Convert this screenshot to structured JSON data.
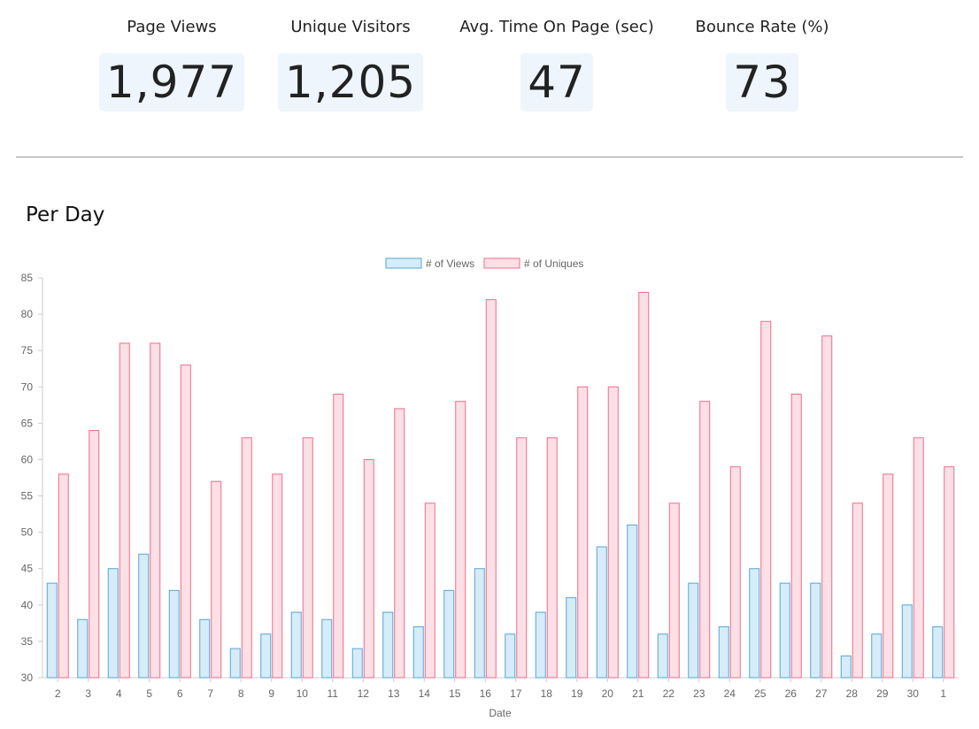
{
  "stats": [
    {
      "label": "Page Views",
      "value": "1,977"
    },
    {
      "label": "Unique Visitors",
      "value": "1,205"
    },
    {
      "label": "Avg. Time On Page (sec)",
      "value": "47"
    },
    {
      "label": "Bounce Rate (%)",
      "value": "73"
    }
  ],
  "section_title": "Per Day",
  "chart_data": {
    "type": "bar",
    "title": "",
    "xlabel": "Date",
    "ylabel": "",
    "ylim": [
      30,
      85
    ],
    "yticks": [
      30,
      35,
      40,
      45,
      50,
      55,
      60,
      65,
      70,
      75,
      80,
      85
    ],
    "grid": false,
    "legend_position": "top",
    "categories": [
      "2",
      "3",
      "4",
      "5",
      "6",
      "7",
      "8",
      "9",
      "10",
      "11",
      "12",
      "13",
      "14",
      "15",
      "16",
      "17",
      "18",
      "19",
      "20",
      "21",
      "22",
      "23",
      "24",
      "25",
      "26",
      "27",
      "28",
      "29",
      "30",
      "1"
    ],
    "series": [
      {
        "name": "# of Views",
        "fill": "#d6ecf9",
        "stroke": "#56a6d6",
        "values": [
          43,
          38,
          45,
          47,
          42,
          38,
          34,
          36,
          39,
          38,
          34,
          39,
          37,
          42,
          45,
          36,
          39,
          41,
          48,
          51,
          36,
          43,
          37,
          45,
          43,
          43,
          33,
          36,
          40,
          37
        ]
      },
      {
        "name": "# of Uniques",
        "fill": "#fde0e6",
        "stroke": "#ef6c8a",
        "values": [
          58,
          64,
          76,
          76,
          73,
          57,
          63,
          58,
          63,
          69,
          60,
          67,
          54,
          68,
          82,
          63,
          63,
          70,
          70,
          83,
          54,
          68,
          59,
          79,
          69,
          77,
          54,
          58,
          63,
          59
        ]
      }
    ]
  }
}
